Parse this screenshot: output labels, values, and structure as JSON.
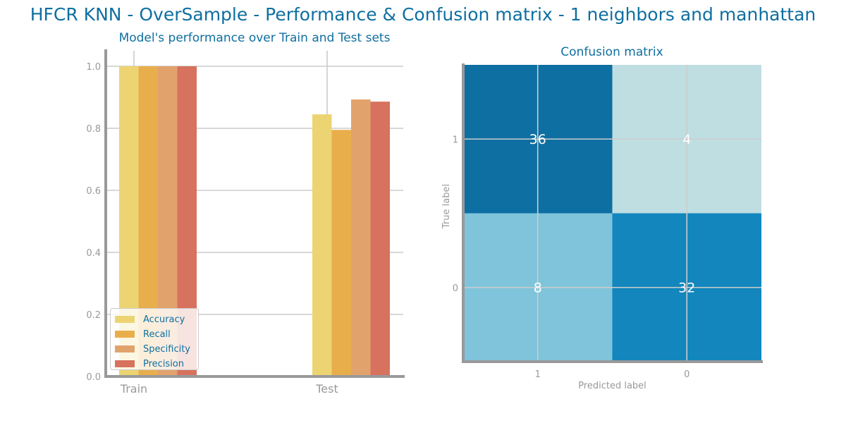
{
  "header": {
    "title": "HFCR KNN - OverSample - Performance & Confusion matrix - 1 neighbors and manhattan"
  },
  "colors": {
    "title": "#0f6fa0",
    "axis": "#999999",
    "grid": "#cccccc",
    "series": [
      "#edd473",
      "#e9ae4c",
      "#e2a26c",
      "#d7725e"
    ],
    "cm_high": "#0e6fa2",
    "cm_mid_high": "#1286bd",
    "cm_mid_low": "#7fc4db",
    "cm_low": "#bfdee2"
  },
  "chart_data": [
    {
      "type": "bar",
      "title": "Model's performance over Train and Test sets",
      "categories": [
        "Train",
        "Test"
      ],
      "series": [
        {
          "name": "Accuracy",
          "values": [
            1.0,
            0.845
          ]
        },
        {
          "name": "Recall",
          "values": [
            1.0,
            0.795
          ]
        },
        {
          "name": "Specificity",
          "values": [
            1.0,
            0.893
          ]
        },
        {
          "name": "Precision",
          "values": [
            1.0,
            0.886
          ]
        }
      ],
      "ylim": [
        0,
        1.0
      ],
      "yticks": [
        "0.0",
        "0.2",
        "0.4",
        "0.6",
        "0.8",
        "1.0"
      ],
      "grid": true,
      "legend": "bottom-left"
    },
    {
      "type": "heatmap",
      "title": "Confusion matrix",
      "xlabel": "Predicted label",
      "ylabel": "True label",
      "x_ticks": [
        "1",
        "0"
      ],
      "y_ticks": [
        "1",
        "0"
      ],
      "matrix": [
        [
          36,
          4
        ],
        [
          8,
          32
        ]
      ]
    }
  ]
}
